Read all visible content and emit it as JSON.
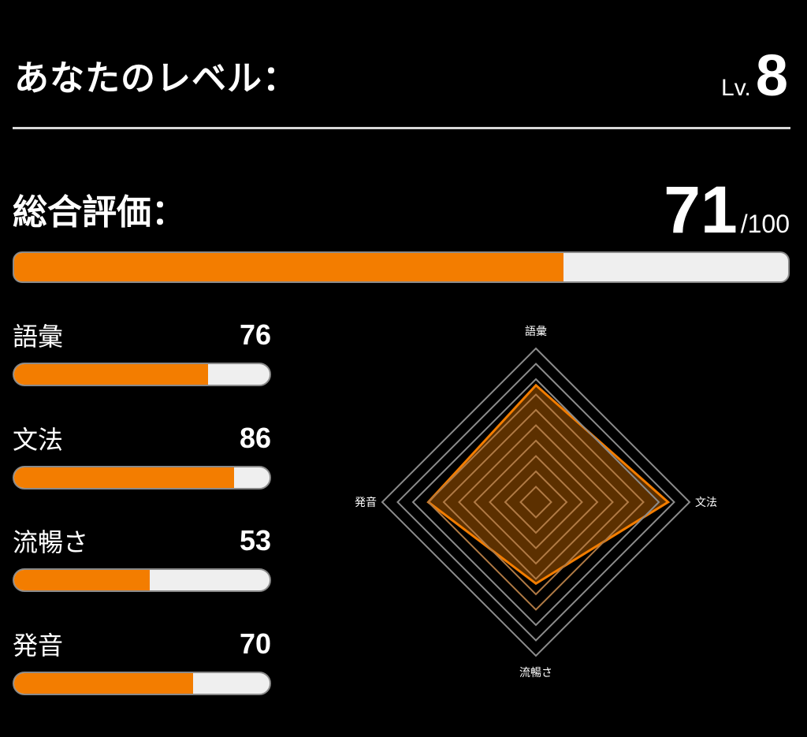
{
  "level": {
    "label": "あなたのレベル：",
    "prefix": "Lv.",
    "value": "8"
  },
  "overall": {
    "label": "総合評価：",
    "value": 71,
    "max_label": "/100",
    "max": 100
  },
  "skills": [
    {
      "name": "語彙",
      "score": 76
    },
    {
      "name": "文法",
      "score": 86
    },
    {
      "name": "流暢さ",
      "score": 53
    },
    {
      "name": "発音",
      "score": 70
    }
  ],
  "colors": {
    "accent": "#f37d00",
    "track": "#efefef",
    "radar_fill": "#5a2c00",
    "grid_outer": "#8c8c8c",
    "grid_inner": "#b07a45"
  },
  "chart_data": {
    "type": "radar",
    "axes": [
      "語彙",
      "文法",
      "流暢さ",
      "発音"
    ],
    "values": [
      76,
      86,
      53,
      70
    ],
    "range": [
      0,
      100
    ],
    "ring_levels": 10
  }
}
